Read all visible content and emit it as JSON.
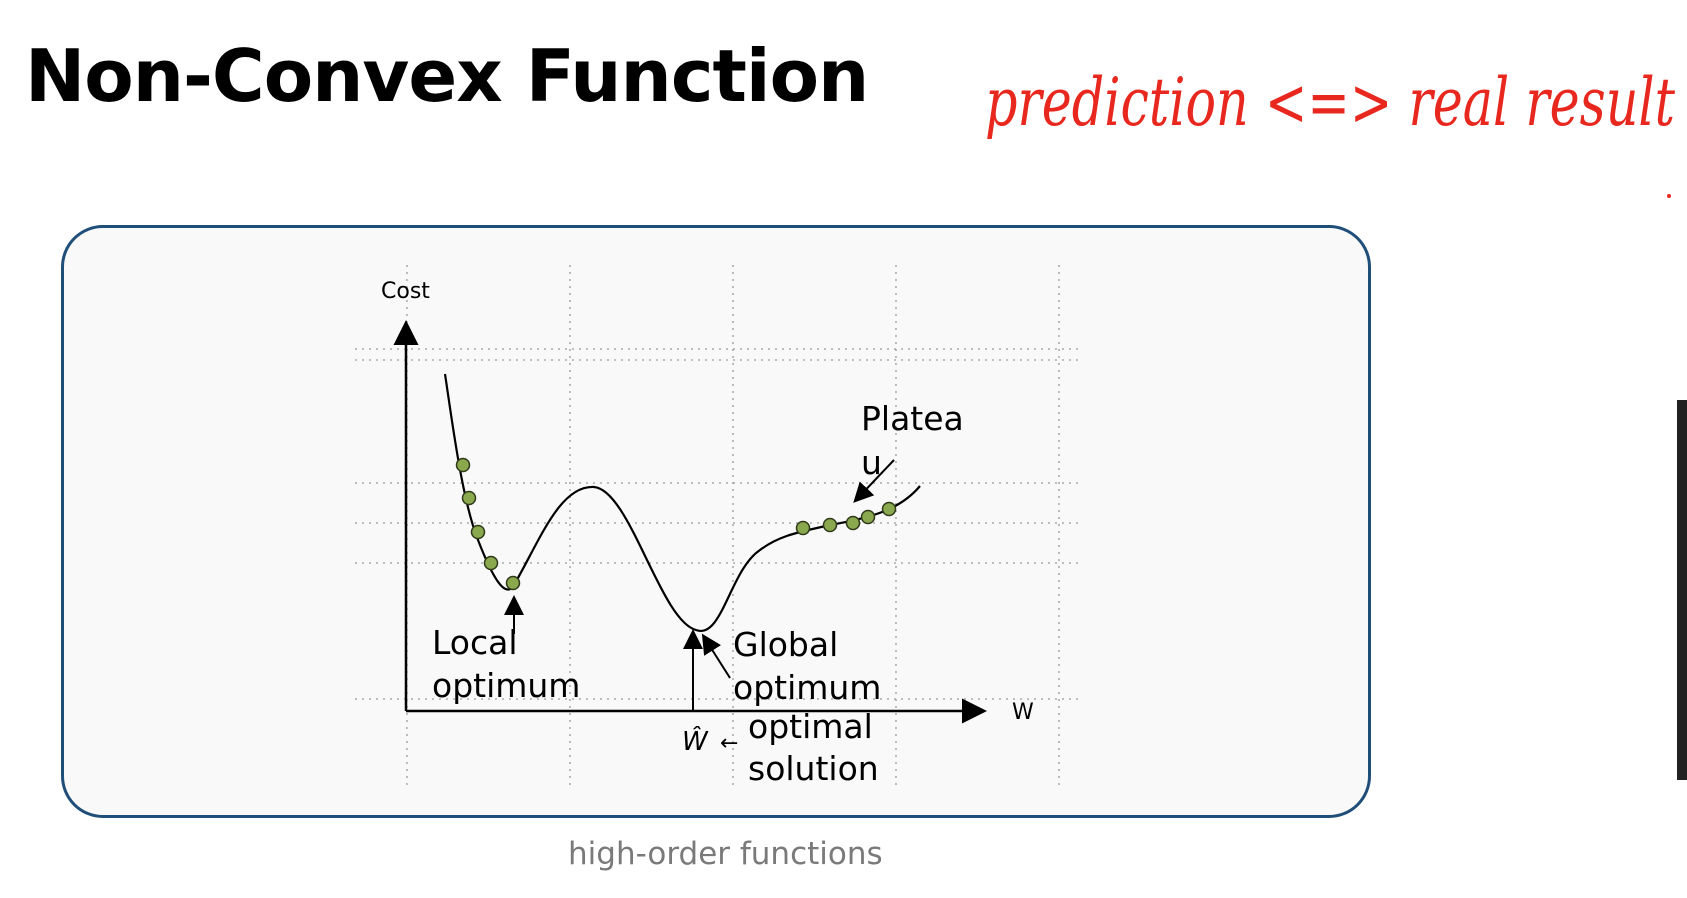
{
  "slide": {
    "title": "Non-Convex Function",
    "caption": "high-order functions"
  },
  "handwritten_note": {
    "text": "prediction <=> real result",
    "color": "#e8281e"
  },
  "diagram": {
    "y_axis_label": "Cost",
    "x_axis_label": "W",
    "plateau_label_line1": "Platea",
    "plateau_label_line2": "u",
    "local_label_line1": "Local",
    "local_label_line2": "optimum",
    "global_label_line1": "Global",
    "global_label_line2": "optimum",
    "optimal_label_line1": "optimal",
    "optimal_label_line2": "solution",
    "w_hat_label": "Ŵ",
    "arrow_glyph": "←",
    "point_color": "#8aa84e",
    "frame_color": "#1f4e79"
  }
}
